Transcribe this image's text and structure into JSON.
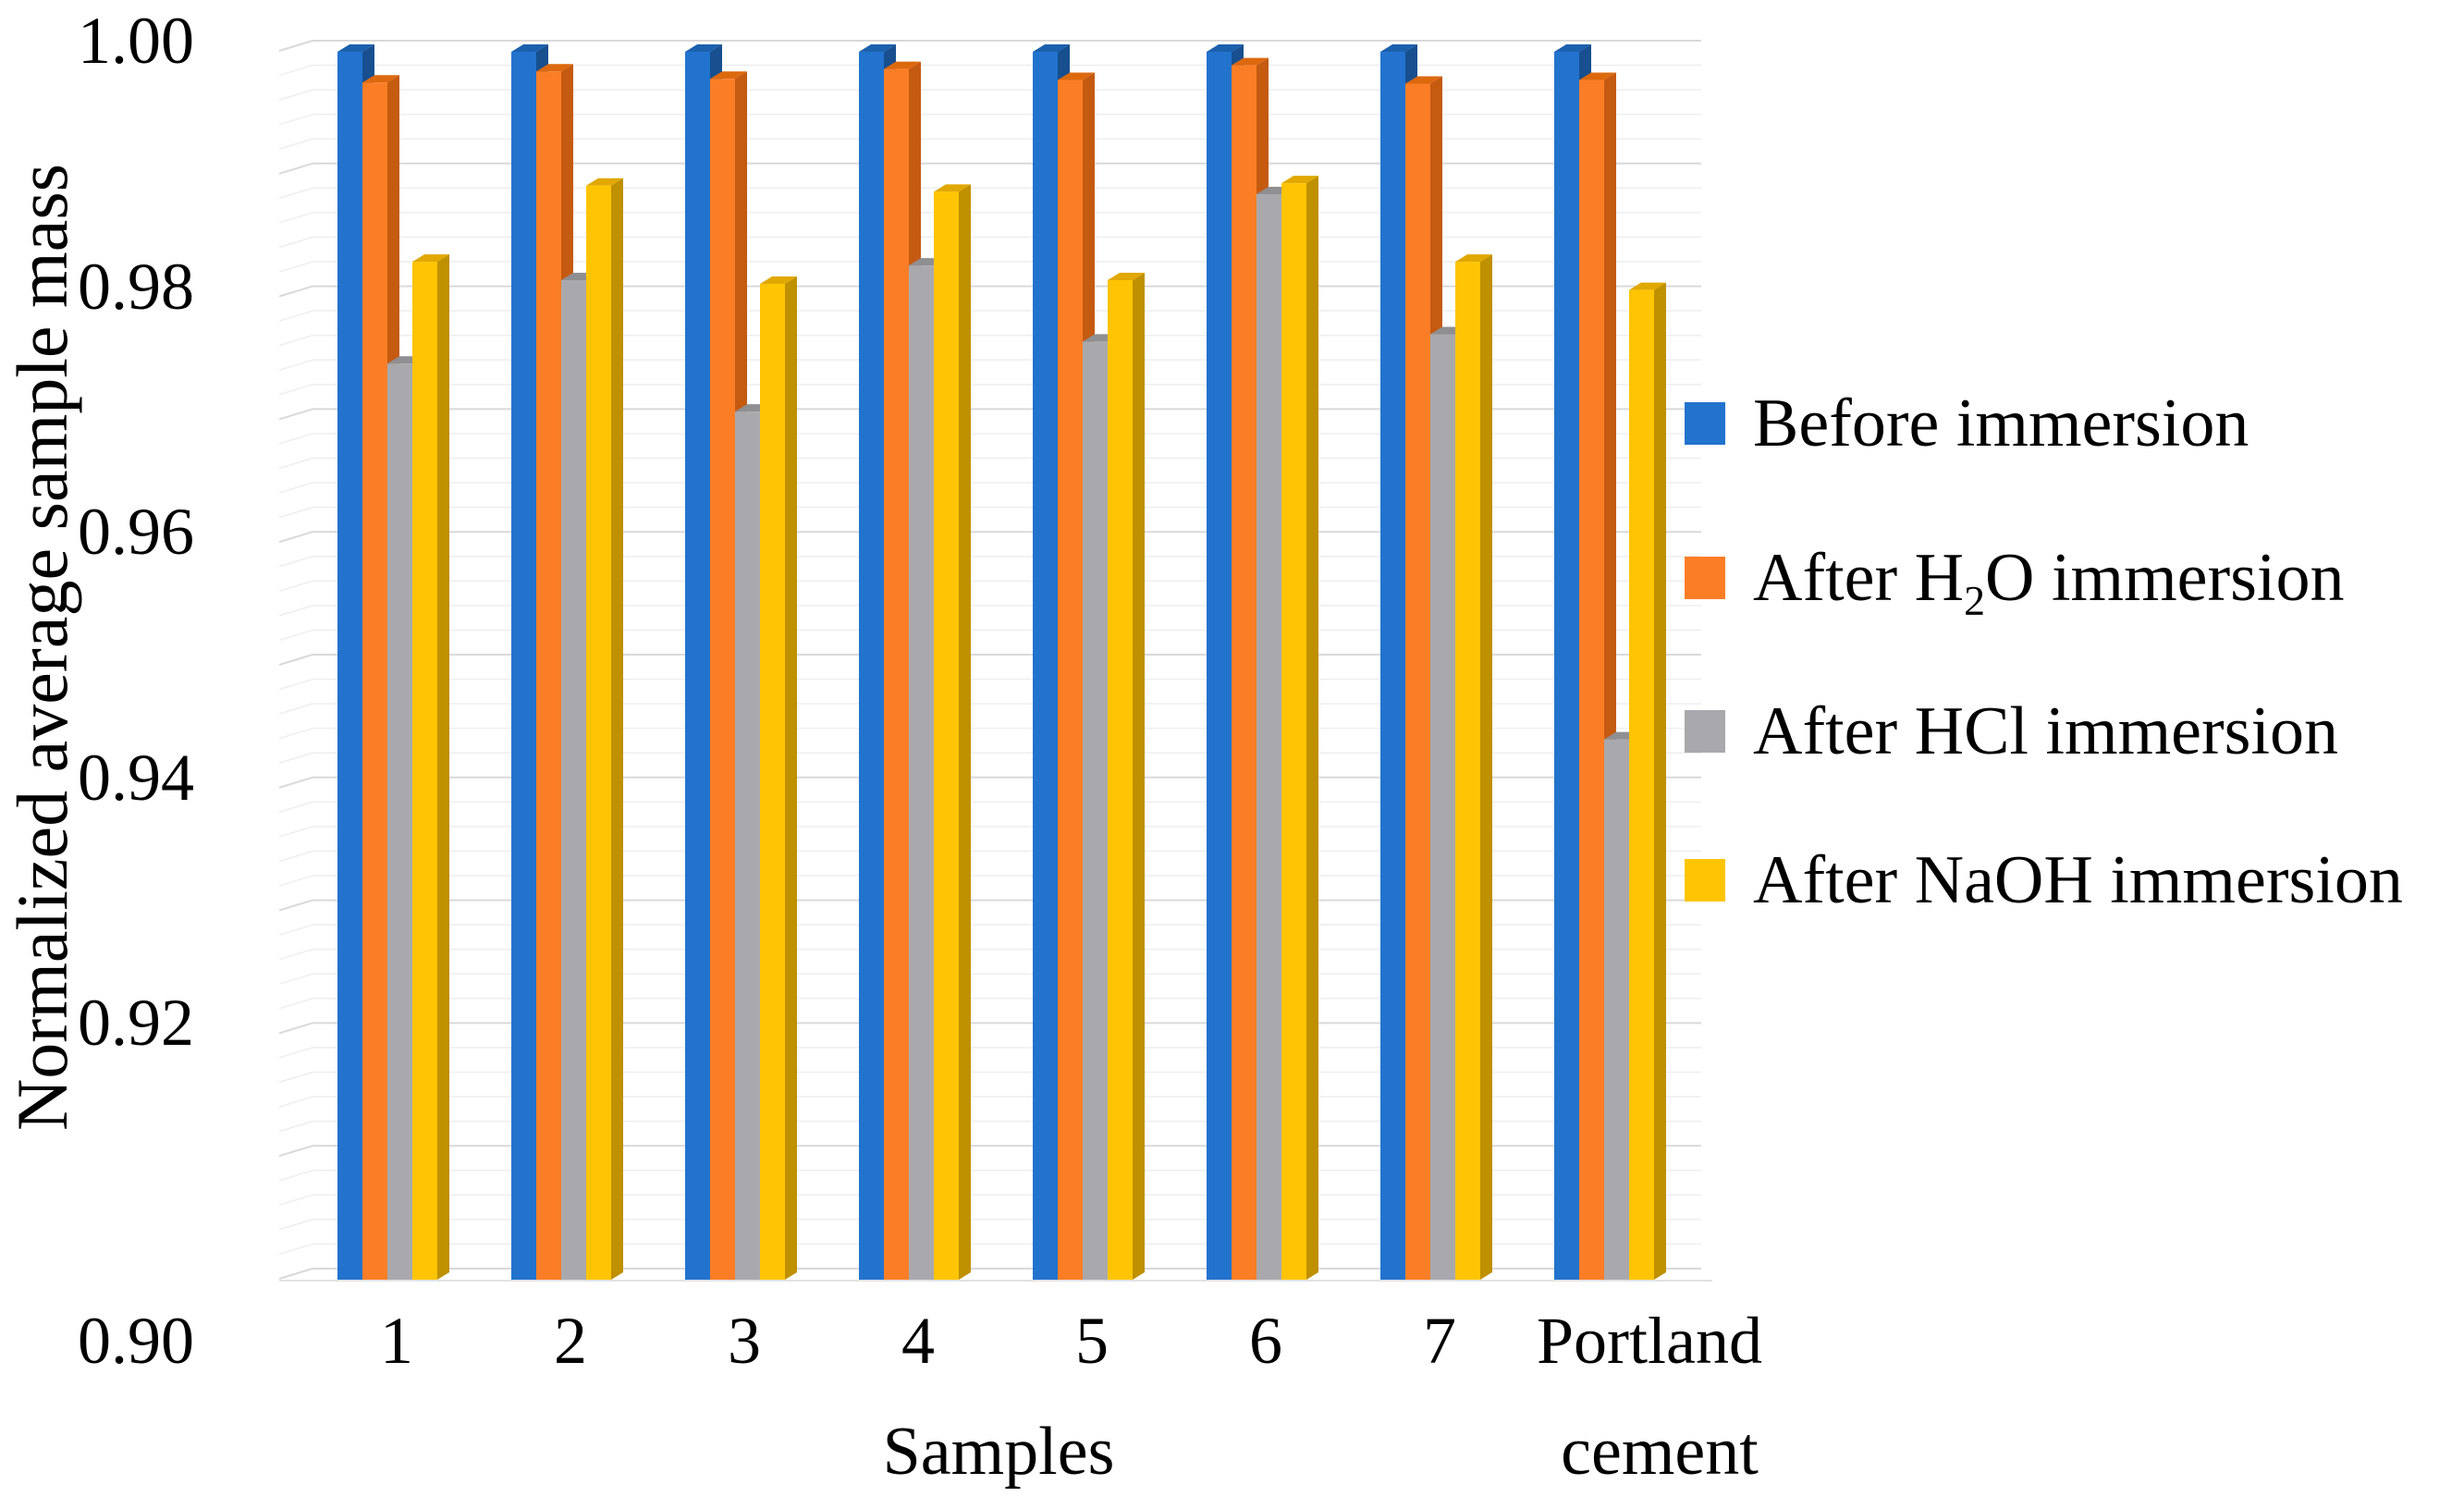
{
  "chart_data": {
    "type": "bar",
    "title": "",
    "ylabel": "Normalized average sample mass",
    "xlabel": "Samples",
    "ylim": [
      0.9,
      1.0
    ],
    "ytick_labels": [
      "1.00",
      "0.98",
      "0.96",
      "0.94",
      "0.92",
      "0.90"
    ],
    "minor_grid_step": 0.002,
    "major_grid_step": 0.01,
    "grid": true,
    "legend_position": "right",
    "categories": [
      "1",
      "2",
      "3",
      "4",
      "5",
      "6",
      "7",
      "Portland"
    ],
    "category_8_second_line": "cement",
    "series": [
      {
        "name": "Before immersion",
        "color": "#2273CE",
        "top_color": "#1C61AE",
        "side_color": "#174F8F",
        "values": [
          1.0,
          1.0,
          1.0,
          1.0,
          1.0,
          1.0,
          1.0,
          1.0
        ]
      },
      {
        "name": "After H2O immersion",
        "color": "#FB7E26",
        "top_color": "#DD690F",
        "side_color": "#C55A11",
        "values": [
          0.9975,
          0.9984,
          0.9978,
          0.9986,
          0.9977,
          0.9989,
          0.9974,
          0.9977
        ]
      },
      {
        "name": "After HCl immersion",
        "color": "#A9A9AD",
        "top_color": "#8F8F92",
        "side_color": "#7F7F82",
        "values": [
          0.9746,
          0.9814,
          0.9707,
          0.9826,
          0.9764,
          0.9884,
          0.977,
          0.944
        ]
      },
      {
        "name": "After NaOH immersion",
        "color": "#FFC403",
        "top_color": "#E0A800",
        "side_color": "#BF9000",
        "values": [
          0.9829,
          0.9891,
          0.9811,
          0.9886,
          0.9814,
          0.9893,
          0.9829,
          0.9806
        ]
      }
    ],
    "legend_items": [
      {
        "pre": "Before immersion",
        "sub": "",
        "post": ""
      },
      {
        "pre": "After H",
        "sub": "2",
        "post": "O immersion"
      },
      {
        "pre": "After HCl immersion",
        "sub": "",
        "post": ""
      },
      {
        "pre": "After NaOH immersion",
        "sub": "",
        "post": ""
      }
    ],
    "grid_colors": {
      "minor": "#EEEEEE",
      "major": "#D9D9D9",
      "floor": "#E3E3E3"
    }
  }
}
